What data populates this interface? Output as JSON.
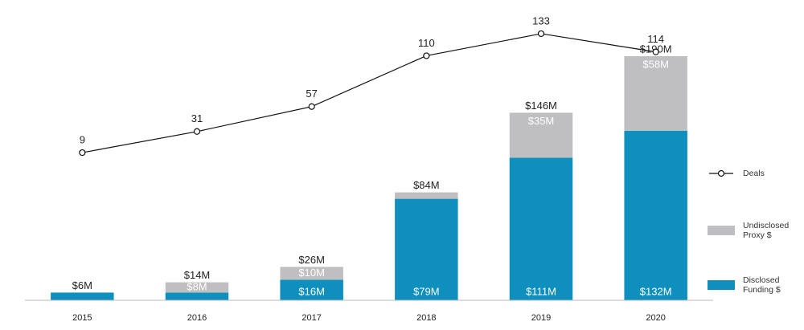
{
  "chart_data": {
    "type": "bar",
    "stacked": true,
    "categories": [
      "2015",
      "2016",
      "2017",
      "2018",
      "2019",
      "2020"
    ],
    "series": [
      {
        "name": "Disclosed Funding $",
        "color": "#0e8fbd",
        "values": [
          6,
          6,
          16,
          79,
          111,
          132
        ],
        "value_labels": [
          null,
          null,
          "$16M",
          "$79M",
          "$111M",
          "$132M"
        ]
      },
      {
        "name": "Undisclosed Proxy $",
        "color": "#bfbfc1",
        "values": [
          null,
          8,
          10,
          5,
          35,
          58
        ],
        "value_labels": [
          null,
          "$8M",
          "$10M",
          null,
          "$35M",
          "$58M"
        ]
      },
      {
        "name": "Deals",
        "type": "line",
        "axis": "y2",
        "color": "#111111",
        "values": [
          9,
          31,
          57,
          110,
          133,
          114
        ]
      }
    ],
    "totals": {
      "values": [
        6,
        14,
        26,
        84,
        146,
        190
      ],
      "value_labels": [
        "$6M",
        "$14M",
        "$26M",
        "$84M",
        "$146M",
        "$190M"
      ]
    },
    "ylim": [
      0,
      215
    ],
    "y2lim": [
      -145,
      143
    ],
    "legend": "right"
  }
}
